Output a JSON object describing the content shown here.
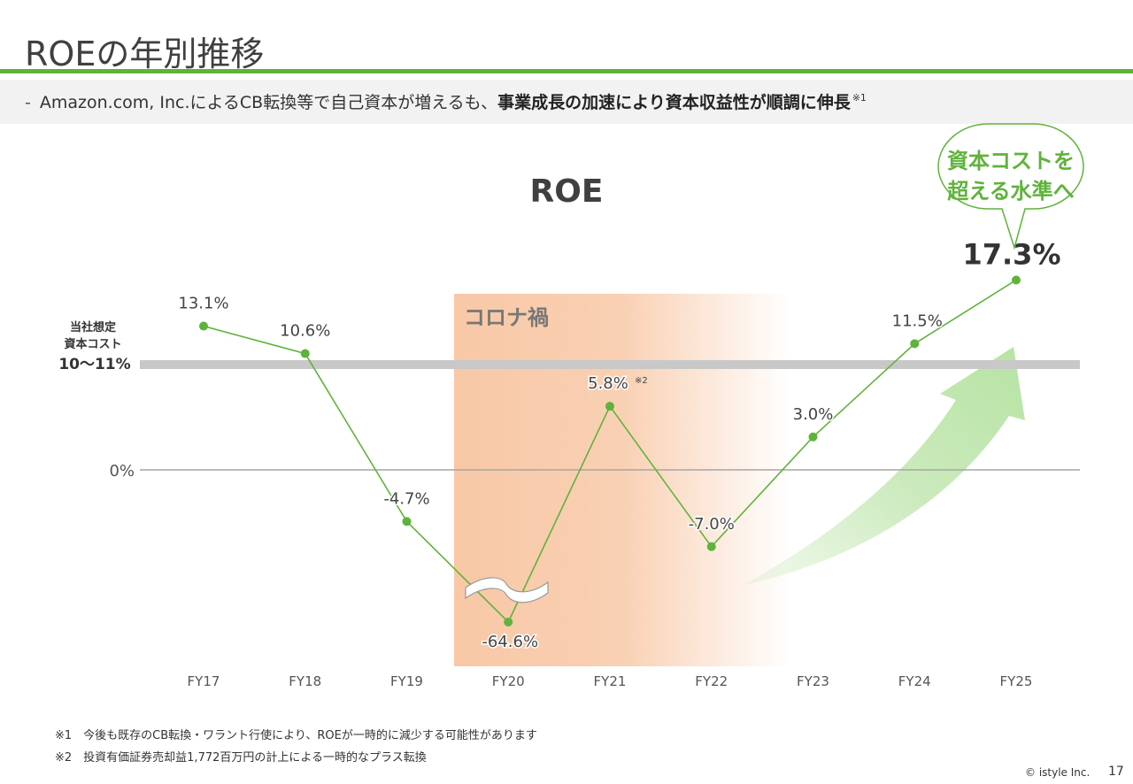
{
  "slide": {
    "title": "ROEの年別推移",
    "subtitle_prefix": "-",
    "subtitle_plain": "Amazon.com, Inc.によるCB転換等で自己資本が増えるも、",
    "subtitle_bold": "事業成長の加速により資本収益性が順調に伸長",
    "subtitle_note": "※1",
    "page_number": "17",
    "copyright": "© istyle Inc."
  },
  "callout": {
    "line1": "資本コストを",
    "line2": "超える水準へ"
  },
  "footnotes": [
    "※1　今後も既存のCB転換・ワラント行使により、ROEが一時的に減少する可能性があります",
    "※2　投資有価証券売却益1,772百万円の計上による一時的なプラス転換"
  ],
  "colors": {
    "accent": "#5fb33b",
    "arrow": "#c5e8b5",
    "corona_band": "#f8c8a6",
    "cost_band": "#c8c8c8",
    "zero_line": "#a6a6a6"
  },
  "chart_data": {
    "type": "line",
    "title": "ROE",
    "categories": [
      "FY17",
      "FY18",
      "FY19",
      "FY20",
      "FY21",
      "FY22",
      "FY23",
      "FY24",
      "FY25"
    ],
    "values": [
      13.1,
      10.6,
      -4.7,
      -64.6,
      5.8,
      -7.0,
      3.0,
      11.5,
      17.3
    ],
    "value_labels": [
      "13.1%",
      "10.6%",
      "-4.7%",
      "-64.6%",
      "5.8%",
      "-7.0%",
      "3.0%",
      "11.5%",
      "17.3%"
    ],
    "value_label_notes": [
      "",
      "",
      "",
      "",
      "※2",
      "",
      "",
      "",
      ""
    ],
    "axis_break": "FY19-FY20",
    "zero_label": "0%",
    "cost_of_capital": {
      "label_line1": "当社想定",
      "label_line2": "資本コスト",
      "label_value": "10〜11%",
      "range": [
        10,
        11
      ]
    },
    "shaded_region": {
      "label": "コロナ禍",
      "from": "FY20",
      "to": "FY22"
    },
    "grid": false,
    "legend": "none"
  }
}
